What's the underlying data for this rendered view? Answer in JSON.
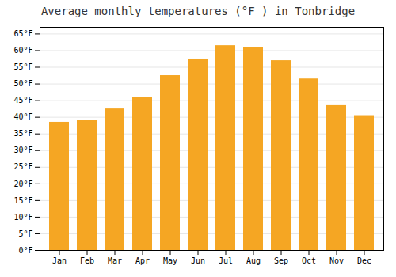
{
  "chart_data": {
    "type": "bar",
    "title": "Average monthly temperatures (°F ) in Tonbridge",
    "categories": [
      "Jan",
      "Feb",
      "Mar",
      "Apr",
      "May",
      "Jun",
      "Jul",
      "Aug",
      "Sep",
      "Oct",
      "Nov",
      "Dec"
    ],
    "values": [
      38.5,
      39.0,
      42.5,
      46.0,
      52.5,
      57.5,
      61.5,
      61.0,
      57.0,
      51.5,
      43.5,
      40.5
    ],
    "color": "#F5A623",
    "ylim": [
      0,
      67
    ],
    "yticks": [
      {
        "value": 0,
        "label": "0°F"
      },
      {
        "value": 5,
        "label": "5°F"
      },
      {
        "value": 10,
        "label": "10°F"
      },
      {
        "value": 15,
        "label": "15°F"
      },
      {
        "value": 20,
        "label": "20°F"
      },
      {
        "value": 25,
        "label": "25°F"
      },
      {
        "value": 30,
        "label": "30°F"
      },
      {
        "value": 35,
        "label": "35°F"
      },
      {
        "value": 40,
        "label": "40°F"
      },
      {
        "value": 45,
        "label": "45°F"
      },
      {
        "value": 50,
        "label": "50°F"
      },
      {
        "value": 55,
        "label": "55°F"
      },
      {
        "value": 60,
        "label": "60°F"
      },
      {
        "value": 65,
        "label": "65°F"
      }
    ],
    "grid": true
  }
}
